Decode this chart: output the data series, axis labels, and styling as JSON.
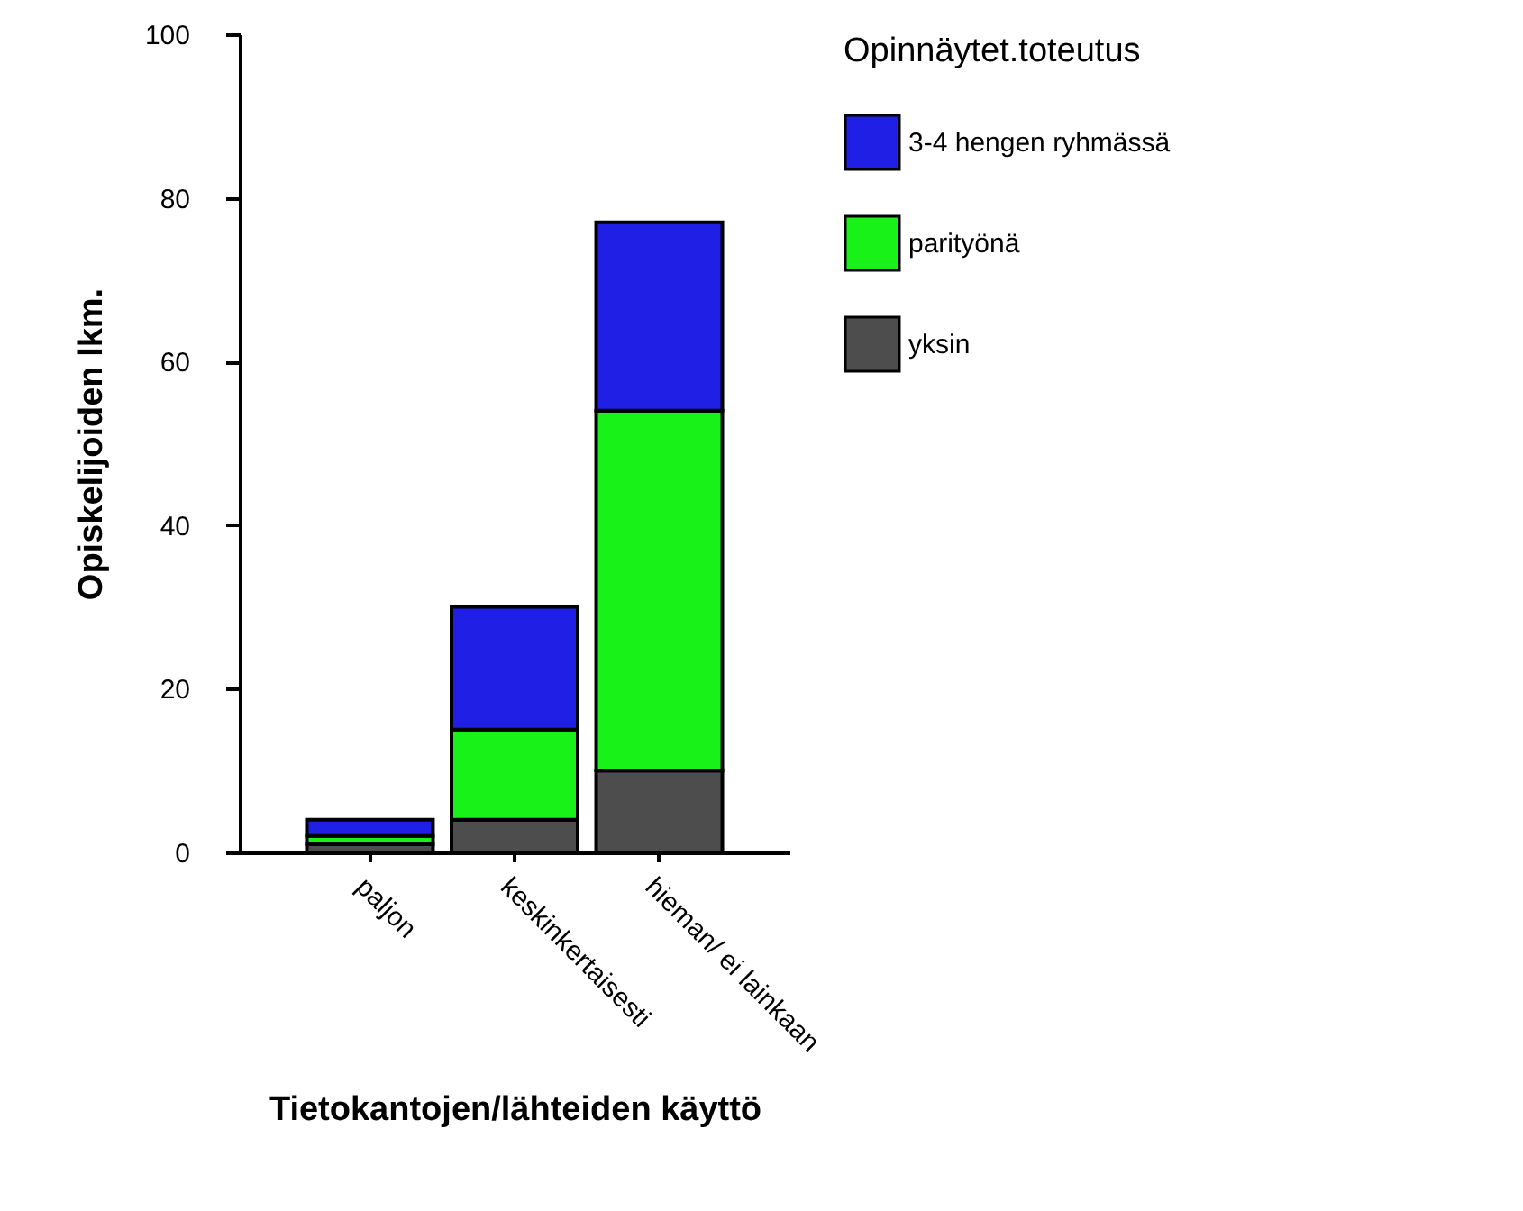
{
  "chart_data": {
    "type": "bar",
    "stacked": true,
    "xlabel": "Tietokantojen/lähteiden käyttö",
    "ylabel": "Opiskelijoiden lkm.",
    "legend_title": "Opinnäytet.toteutus",
    "legend": "right",
    "grid": false,
    "categories": [
      "paljon",
      "keskinkertaisesti",
      "hieman/ ei lainkaan"
    ],
    "ylim": [
      0,
      100
    ],
    "yticks": [
      0,
      20,
      40,
      60,
      80,
      100
    ],
    "series": [
      {
        "name": "yksin",
        "color": "#4d4d4d",
        "values": [
          1,
          4,
          10
        ]
      },
      {
        "name": "parityönä",
        "color": "#19f219",
        "values": [
          1,
          11,
          44
        ]
      },
      {
        "name": "3-4 hengen ryhmässä",
        "color": "#1f1fe6",
        "values": [
          2,
          15,
          23
        ]
      }
    ]
  }
}
